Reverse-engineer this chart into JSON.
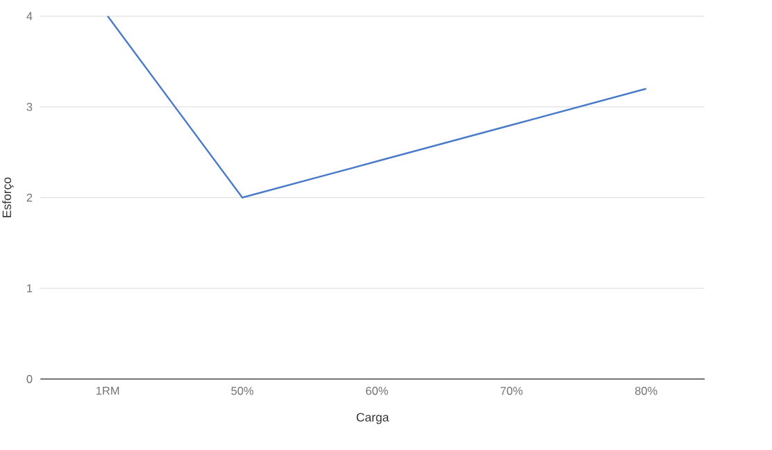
{
  "chart_data": {
    "type": "line",
    "xlabel": "Carga",
    "ylabel": "Esforço",
    "categories": [
      "1RM",
      "50%",
      "60%",
      "70%",
      "80%"
    ],
    "values": [
      4,
      2,
      2.4,
      2.8,
      3.2
    ],
    "color": "#4a7ac8",
    "ylim": [
      0,
      4
    ],
    "yticks": [
      0,
      1,
      2,
      3,
      4
    ],
    "grid": "y",
    "marker": "none"
  }
}
